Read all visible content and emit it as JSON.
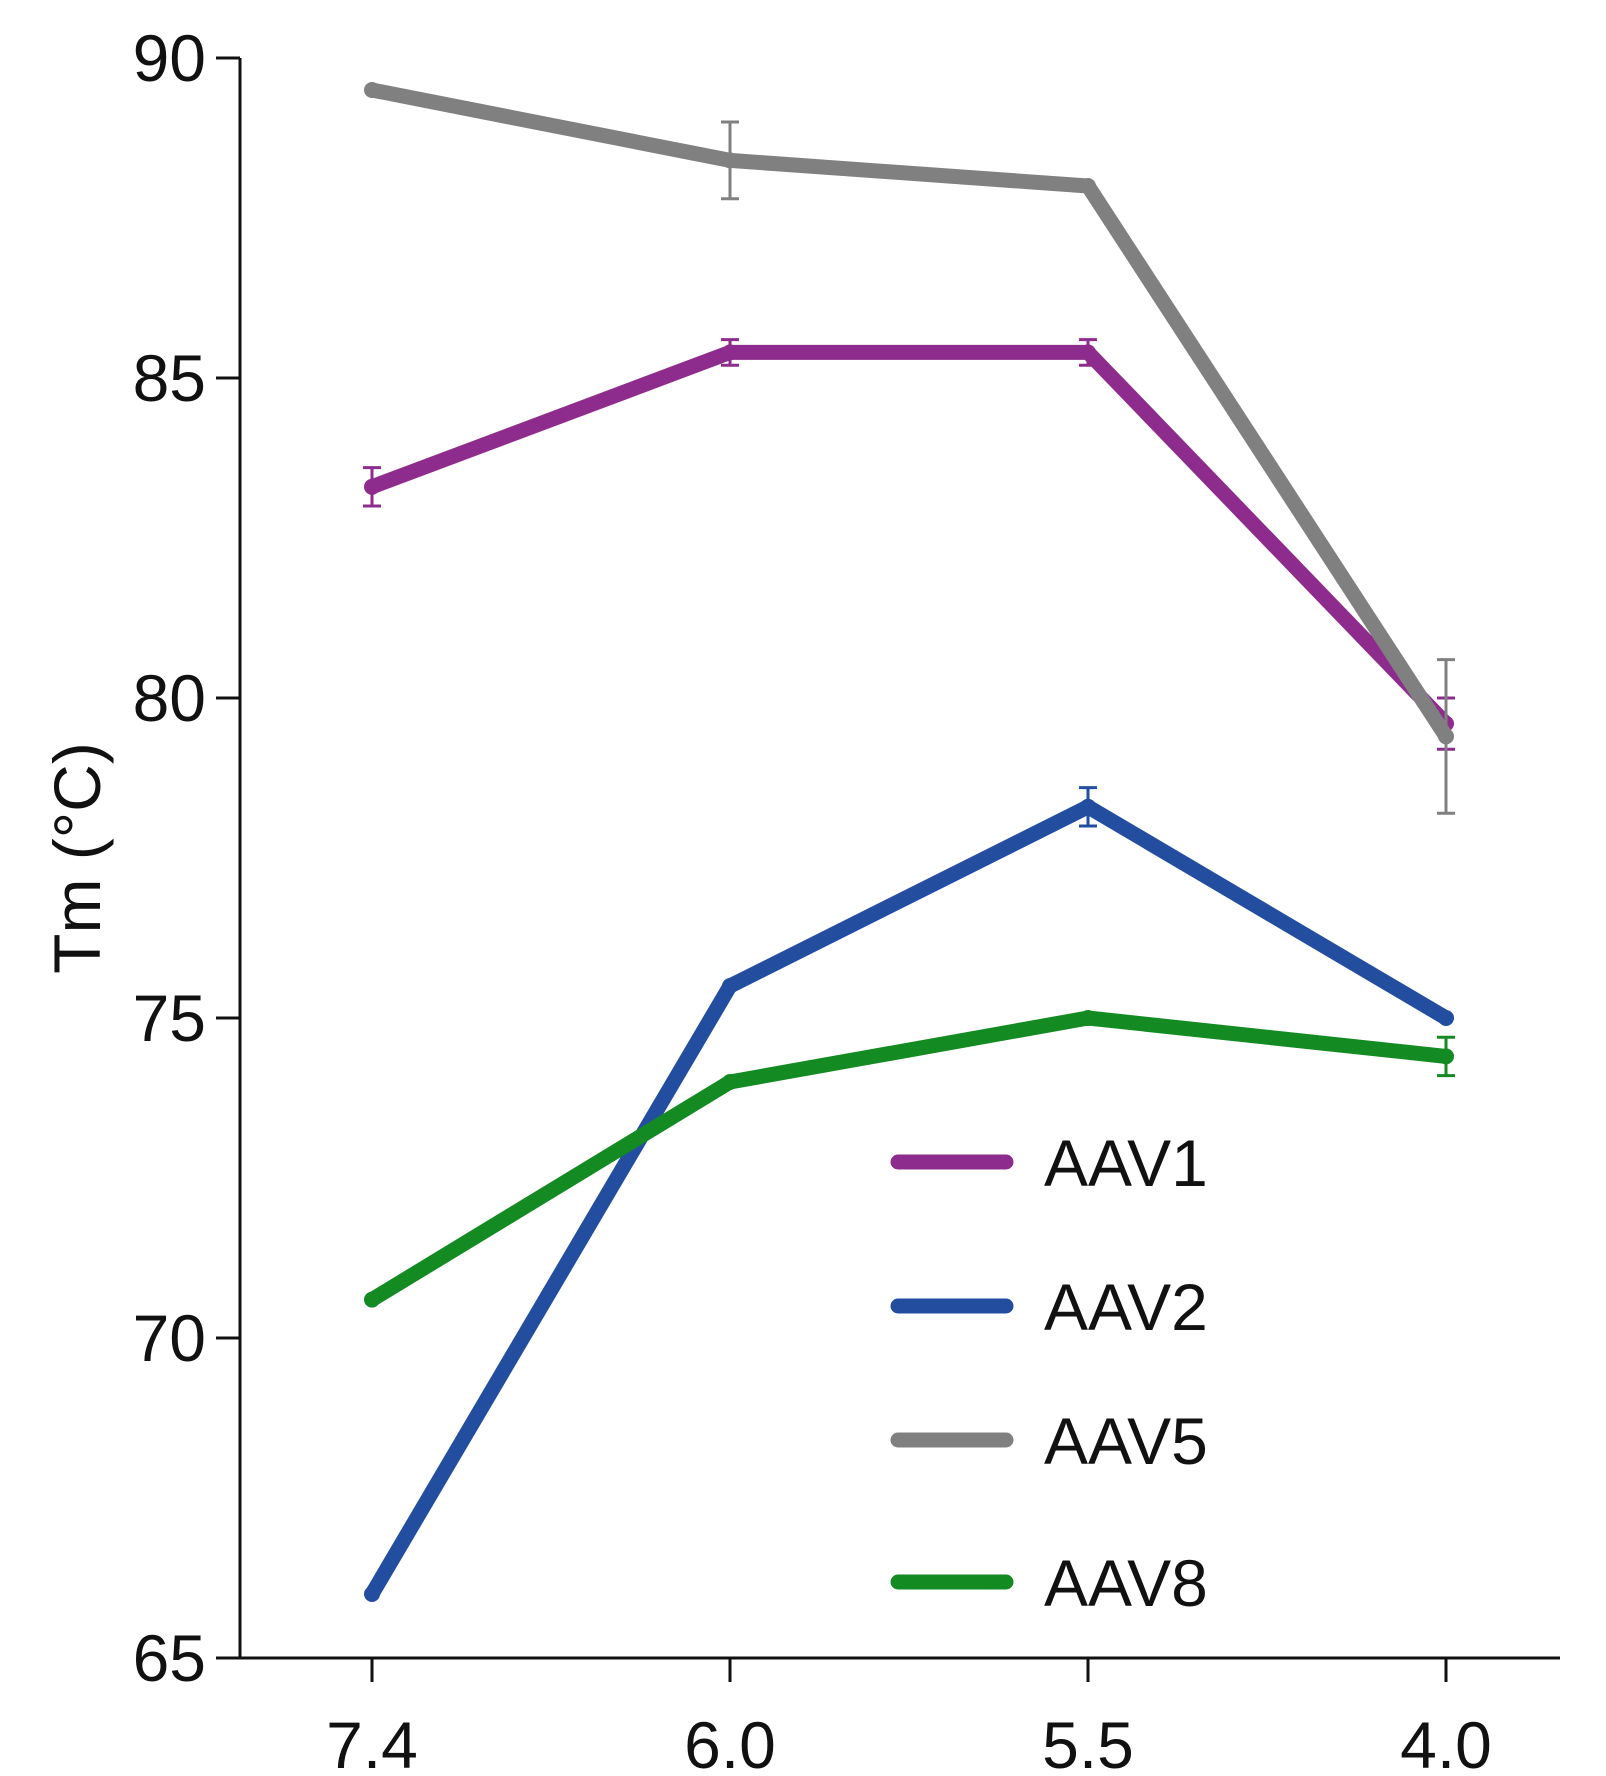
{
  "chart_data": {
    "type": "line",
    "title": "",
    "xlabel": "",
    "ylabel": "Tm (°C)",
    "categories": [
      "7.4",
      "6.0",
      "5.5",
      "4.0"
    ],
    "ylim": [
      65,
      90
    ],
    "yticks": [
      "65",
      "70",
      "75",
      "80",
      "85",
      "90"
    ],
    "grid": false,
    "legend_position": "bottom-right",
    "series": [
      {
        "name": "AAV1",
        "color": "#8e2c8e",
        "values": [
          83.3,
          85.4,
          85.4,
          79.6
        ],
        "errors": [
          0.3,
          0.2,
          0.2,
          0.4
        ]
      },
      {
        "name": "AAV2",
        "color": "#234ea0",
        "values": [
          66.0,
          75.5,
          78.3,
          75.0
        ],
        "errors": [
          0.0,
          0.0,
          0.3,
          0.0
        ]
      },
      {
        "name": "AAV5",
        "color": "#808080",
        "values": [
          89.5,
          88.4,
          88.0,
          79.4
        ],
        "errors": [
          0.0,
          0.6,
          0.0,
          1.2
        ]
      },
      {
        "name": "AAV8",
        "color": "#138a22",
        "values": [
          70.6,
          74.0,
          75.0,
          74.4
        ],
        "errors": [
          0.0,
          0.0,
          0.0,
          0.3
        ]
      }
    ]
  }
}
